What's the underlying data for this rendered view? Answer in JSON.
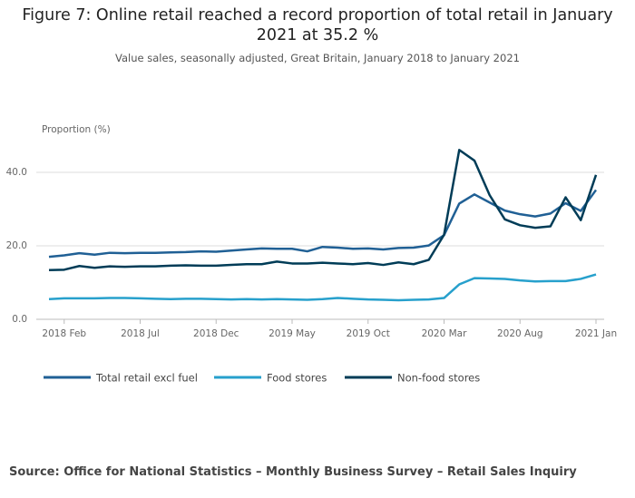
{
  "chart_data": {
    "type": "line",
    "title": "Figure 7: Online retail reached a record proportion of total retail in January 2021 at 35.2 %",
    "subtitle": "Value sales, seasonally adjusted, Great Britain, January 2018 to January 2021",
    "y_label": "Proportion (%)",
    "source": "Source: Office for National Statistics – Monthly Business Survey – Retail Sales Inquiry",
    "categories": [
      null,
      "2018 Feb",
      null,
      null,
      null,
      null,
      "2018 Jul",
      null,
      null,
      null,
      null,
      "2018 Dec",
      null,
      null,
      null,
      null,
      "2019 May",
      null,
      null,
      null,
      null,
      "2019 Oct",
      null,
      null,
      null,
      null,
      "2020 Mar",
      null,
      null,
      null,
      null,
      "2020 Aug",
      null,
      null,
      null,
      null,
      "2021 Jan"
    ],
    "series": [
      {
        "name": "Total retail excl fuel",
        "color": "#206095",
        "values": [
          17.0,
          17.4,
          18.0,
          17.6,
          18.1,
          18.0,
          18.1,
          18.1,
          18.2,
          18.3,
          18.5,
          18.4,
          18.7,
          19.0,
          19.3,
          19.2,
          19.2,
          18.5,
          19.7,
          19.5,
          19.2,
          19.3,
          19.0,
          19.4,
          19.5,
          20.1,
          22.9,
          31.5,
          34.0,
          31.8,
          29.6,
          28.6,
          28.0,
          28.8,
          31.6,
          29.5,
          35.2
        ]
      },
      {
        "name": "Food stores",
        "color": "#27a0cc",
        "values": [
          5.5,
          5.7,
          5.7,
          5.7,
          5.8,
          5.8,
          5.7,
          5.6,
          5.5,
          5.6,
          5.6,
          5.5,
          5.4,
          5.5,
          5.4,
          5.5,
          5.4,
          5.3,
          5.5,
          5.8,
          5.6,
          5.4,
          5.3,
          5.2,
          5.3,
          5.4,
          5.8,
          9.5,
          11.2,
          11.1,
          11.0,
          10.6,
          10.3,
          10.4,
          10.4,
          11.0,
          12.2
        ]
      },
      {
        "name": "Non-food stores",
        "color": "#003c57",
        "values": [
          13.4,
          13.5,
          14.5,
          14.0,
          14.4,
          14.3,
          14.4,
          14.4,
          14.6,
          14.7,
          14.6,
          14.6,
          14.8,
          15.0,
          15.0,
          15.7,
          15.2,
          15.2,
          15.4,
          15.2,
          15.0,
          15.3,
          14.8,
          15.5,
          15.0,
          16.2,
          23.0,
          46.1,
          43.2,
          33.8,
          27.2,
          25.6,
          24.9,
          25.3,
          33.2,
          27.0,
          39.3
        ]
      }
    ],
    "ylim": [
      0,
      48
    ],
    "yticks": [
      {
        "value": 0,
        "label": "0.0"
      },
      {
        "value": 20,
        "label": "20.0"
      },
      {
        "value": 40,
        "label": "40.0"
      }
    ],
    "grid": true,
    "legend": "bottom"
  }
}
